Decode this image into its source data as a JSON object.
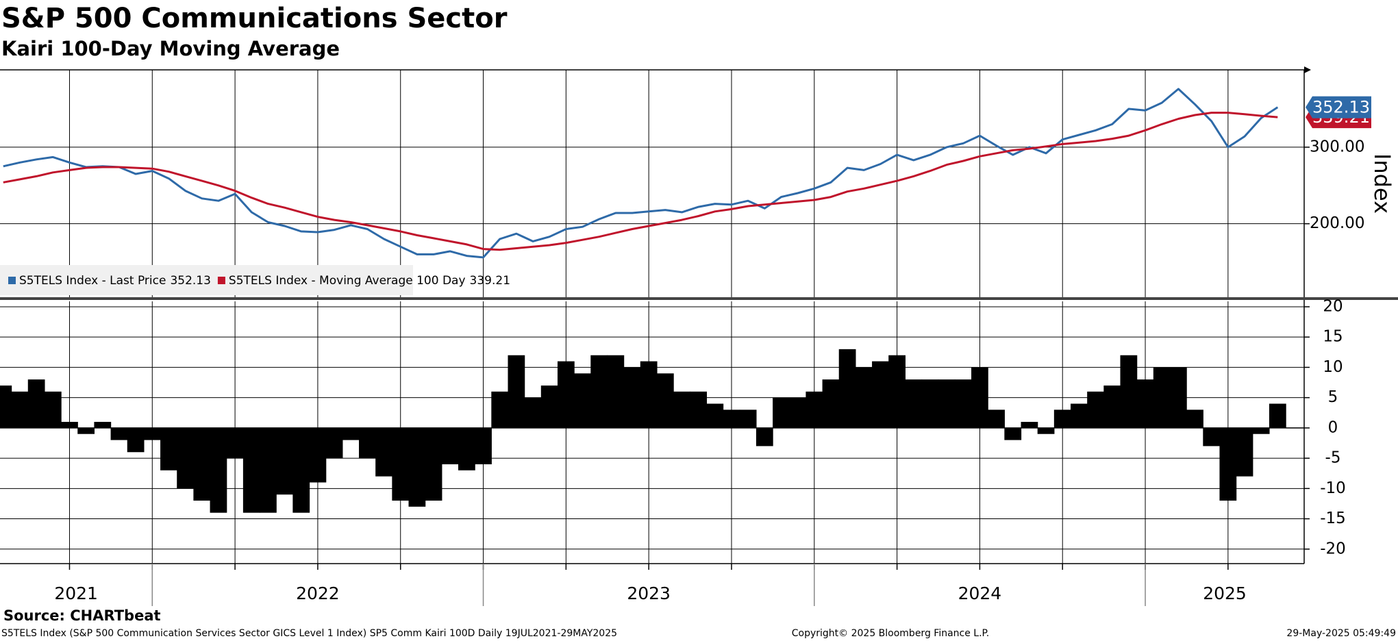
{
  "chart_data": [
    {
      "type": "line",
      "title": "S&P 500 Communications Sector",
      "subtitle": "Kairi 100-Day Moving Average",
      "y_label": "Index",
      "x": [
        2021.55,
        2021.6,
        2021.65,
        2021.7,
        2021.75,
        2021.8,
        2021.85,
        2021.9,
        2021.95,
        2022.0,
        2022.05,
        2022.1,
        2022.15,
        2022.2,
        2022.25,
        2022.3,
        2022.35,
        2022.4,
        2022.45,
        2022.5,
        2022.55,
        2022.6,
        2022.65,
        2022.7,
        2022.75,
        2022.8,
        2022.85,
        2022.9,
        2022.95,
        2023.0,
        2023.05,
        2023.1,
        2023.15,
        2023.2,
        2023.25,
        2023.3,
        2023.35,
        2023.4,
        2023.45,
        2023.5,
        2023.55,
        2023.6,
        2023.65,
        2023.7,
        2023.75,
        2023.8,
        2023.85,
        2023.9,
        2023.95,
        2024.0,
        2024.05,
        2024.1,
        2024.15,
        2024.2,
        2024.25,
        2024.3,
        2024.35,
        2024.4,
        2024.45,
        2024.5,
        2024.55,
        2024.6,
        2024.65,
        2024.7,
        2024.75,
        2024.8,
        2024.85,
        2024.9,
        2024.95,
        2025.0,
        2025.05,
        2025.1,
        2025.15,
        2025.2,
        2025.25,
        2025.3,
        2025.35,
        2025.4
      ],
      "series": [
        {
          "name": "S5TELS Index - Last Price",
          "color": "#2e6aa8",
          "values": [
            275,
            280,
            284,
            287,
            280,
            274,
            275,
            274,
            265,
            269,
            259,
            243,
            233,
            230,
            239,
            215,
            202,
            197,
            190,
            189,
            192,
            198,
            193,
            180,
            170,
            160,
            160,
            164,
            158,
            156,
            180,
            187,
            177,
            183,
            193,
            196,
            206,
            214,
            214,
            216,
            218,
            215,
            222,
            226,
            225,
            230,
            220,
            235,
            240,
            246,
            254,
            273,
            270,
            278,
            290,
            283,
            290,
            300,
            305,
            315,
            302,
            290,
            300,
            292,
            310,
            316,
            322,
            330,
            350,
            348,
            358,
            376,
            356,
            334,
            300,
            314,
            338,
            352.13
          ]
        },
        {
          "name": "S5TELS Index - Moving Average 100 Day",
          "color": "#c0142b",
          "values": [
            254,
            258,
            262,
            267,
            270,
            273,
            274,
            274,
            273,
            272,
            268,
            262,
            256,
            250,
            243,
            234,
            226,
            221,
            215,
            209,
            205,
            202,
            198,
            194,
            190,
            185,
            181,
            177,
            173,
            167,
            166,
            168,
            170,
            172,
            175,
            179,
            183,
            188,
            193,
            197,
            201,
            205,
            210,
            216,
            219,
            223,
            225,
            227,
            229,
            231,
            235,
            242,
            246,
            251,
            256,
            262,
            269,
            277,
            282,
            288,
            292,
            296,
            298,
            301,
            304,
            306,
            308,
            311,
            315,
            322,
            330,
            337,
            342,
            345,
            345,
            343,
            341,
            339.21
          ]
        }
      ],
      "xlim": [
        2021.54,
        2025.48
      ],
      "xticks": [
        2021.75,
        2022,
        2022.25,
        2022.5,
        2022.75,
        2023,
        2023.25,
        2023.5,
        2023.75,
        2024,
        2024.25,
        2024.5,
        2024.75,
        2025,
        2025.25
      ],
      "ylim": [
        104,
        401
      ],
      "yticks": [
        {
          "value": 200,
          "label": "200.00"
        },
        {
          "value": 300,
          "label": "300.00"
        }
      ],
      "grid": true
    },
    {
      "type": "bar",
      "x": [
        2021.55,
        2021.6,
        2021.65,
        2021.7,
        2021.75,
        2021.8,
        2021.85,
        2021.9,
        2021.95,
        2022.0,
        2022.05,
        2022.1,
        2022.15,
        2022.2,
        2022.25,
        2022.3,
        2022.35,
        2022.4,
        2022.45,
        2022.5,
        2022.55,
        2022.6,
        2022.65,
        2022.7,
        2022.75,
        2022.8,
        2022.85,
        2022.9,
        2022.95,
        2023.0,
        2023.05,
        2023.1,
        2023.15,
        2023.2,
        2023.25,
        2023.3,
        2023.35,
        2023.4,
        2023.45,
        2023.5,
        2023.55,
        2023.6,
        2023.65,
        2023.7,
        2023.75,
        2023.8,
        2023.85,
        2023.9,
        2023.95,
        2024.0,
        2024.05,
        2024.1,
        2024.15,
        2024.2,
        2024.25,
        2024.3,
        2024.35,
        2024.4,
        2024.45,
        2024.5,
        2024.55,
        2024.6,
        2024.65,
        2024.7,
        2024.75,
        2024.8,
        2024.85,
        2024.9,
        2024.95,
        2025.0,
        2025.05,
        2025.1,
        2025.15,
        2025.2,
        2025.25,
        2025.3,
        2025.35,
        2025.4
      ],
      "values": [
        7,
        6,
        8,
        6,
        1,
        -1,
        1,
        -2,
        -4,
        -2,
        -7,
        -10,
        -12,
        -14,
        -5,
        -14,
        -14,
        -11,
        -14,
        -9,
        -5,
        -2,
        -5,
        -8,
        -12,
        -13,
        -12,
        -6,
        -7,
        -6,
        6,
        12,
        5,
        7,
        11,
        9,
        12,
        12,
        10,
        11,
        9,
        6,
        6,
        4,
        3,
        3,
        -3,
        5,
        5,
        6,
        8,
        13,
        10,
        11,
        12,
        8,
        8,
        8,
        8,
        10,
        3,
        -2,
        1,
        -1,
        3,
        4,
        6,
        7,
        12,
        8,
        10,
        10,
        3,
        -3,
        -12,
        -8,
        -1,
        4
      ],
      "color": "#000000",
      "xlim": [
        2021.54,
        2025.48
      ],
      "xticks": [
        2021.75,
        2022,
        2022.25,
        2022.5,
        2022.75,
        2023,
        2023.25,
        2023.5,
        2023.75,
        2024,
        2024.25,
        2024.5,
        2024.75,
        2025,
        2025.25
      ],
      "years": [
        {
          "value": 2021,
          "label": "2021"
        },
        {
          "value": 2022,
          "label": "2022"
        },
        {
          "value": 2023,
          "label": "2023"
        },
        {
          "value": 2024,
          "label": "2024"
        },
        {
          "value": 2025,
          "label": "2025"
        }
      ],
      "ylim": [
        -22.4,
        20.9
      ],
      "yticks": [
        -20,
        -15,
        -10,
        -5,
        0,
        5,
        10,
        15,
        20
      ],
      "grid": true
    }
  ],
  "source": "Source: CHARTbeat",
  "footer_left": "S5TELS Index (S&P 500 Communication Services Sector GICS Level 1 Index) SP5 Comm Kairi 100D  Daily 19JUL2021-29MAY2025",
  "copyright": "Copyright© 2025 Bloomberg Finance L.P.",
  "timestamp": "29-May-2025 05:49:49"
}
